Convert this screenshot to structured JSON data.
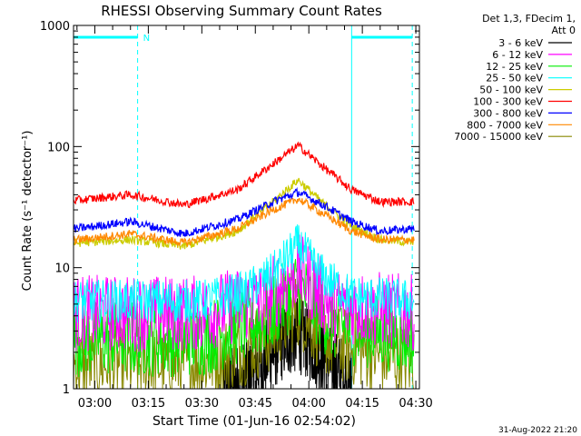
{
  "chart_data": {
    "type": "line",
    "title": "RHESSI Observing Summary Count Rates",
    "xlabel": "Start Time (01-Jun-16 02:54:02)",
    "ylabel": "Count Rate (s⁻¹ detector⁻¹)",
    "yscale": "log",
    "ylim": [
      1,
      1000
    ],
    "xlim": [
      "02:54:02",
      "04:31:00"
    ],
    "x_ticks": [
      "03:00",
      "03:15",
      "03:30",
      "03:45",
      "04:00",
      "04:15",
      "04:30"
    ],
    "y_ticks": [
      "1",
      "10",
      "100",
      "1000"
    ],
    "grid": false,
    "legend_position": "right",
    "legend_header": [
      "Det 1,3, FDecim 1,",
      "Att 0"
    ],
    "annotations": {
      "night_marker_label": "N",
      "footer_date": "31-Aug-2022 21:20"
    },
    "series": [
      {
        "name": "3 - 6 keV",
        "color": "#000000",
        "x": [
          "03:36",
          "03:42",
          "03:48",
          "03:54",
          "03:57",
          "04:00",
          "04:06",
          "04:12"
        ],
        "values": [
          1,
          1.2,
          1.8,
          2.6,
          2.8,
          2.4,
          1.6,
          1.1
        ]
      },
      {
        "name": "6 - 12 keV",
        "color": "#ff00ff",
        "x": [
          "02:55",
          "03:30",
          "03:48",
          "03:57",
          "04:06",
          "04:30"
        ],
        "values": [
          4.2,
          4.2,
          5.5,
          9.5,
          5.0,
          4.2
        ]
      },
      {
        "name": "12 - 25 keV",
        "color": "#00ee00",
        "x": [
          "02:55",
          "03:30",
          "03:48",
          "03:57",
          "04:06",
          "04:30"
        ],
        "values": [
          2.6,
          2.6,
          3.8,
          7.0,
          3.5,
          2.6
        ]
      },
      {
        "name": "25 - 50 keV",
        "color": "#00ffff",
        "x": [
          "02:55",
          "03:30",
          "03:42",
          "03:50",
          "03:57",
          "04:04",
          "04:12",
          "04:30"
        ],
        "values": [
          5.3,
          5.3,
          6.2,
          9.0,
          15.5,
          8.5,
          5.8,
          5.3
        ]
      },
      {
        "name": "50 - 100 keV",
        "color": "#cccc00",
        "x": [
          "02:55",
          "03:10",
          "03:25",
          "03:40",
          "03:50",
          "03:57",
          "04:04",
          "04:12",
          "04:20",
          "04:30"
        ],
        "values": [
          16,
          17,
          15,
          20,
          35,
          53,
          34,
          22,
          17,
          16
        ]
      },
      {
        "name": "100 - 300 keV",
        "color": "#ff0000",
        "x": [
          "02:55",
          "03:10",
          "03:25",
          "03:40",
          "03:50",
          "03:57",
          "04:04",
          "04:12",
          "04:20",
          "04:30"
        ],
        "values": [
          36,
          40,
          33,
          44,
          72,
          102,
          68,
          44,
          35,
          35
        ]
      },
      {
        "name": "300 - 800 keV",
        "color": "#0000ff",
        "x": [
          "02:55",
          "03:10",
          "03:25",
          "03:40",
          "03:50",
          "03:57",
          "04:04",
          "04:12",
          "04:20",
          "04:30"
        ],
        "values": [
          21,
          24,
          19,
          25,
          35,
          42,
          33,
          24,
          20,
          21
        ]
      },
      {
        "name": "800 - 7000 keV",
        "color": "#ff8800",
        "x": [
          "02:55",
          "03:10",
          "03:25",
          "03:40",
          "03:50",
          "03:57",
          "04:04",
          "04:12",
          "04:20",
          "04:30"
        ],
        "values": [
          17,
          19,
          16,
          21,
          30,
          37,
          28,
          20,
          17,
          17
        ]
      },
      {
        "name": "7000 - 15000 keV",
        "color": "#888800",
        "x": [
          "02:55",
          "03:30",
          "03:48",
          "03:57",
          "04:06",
          "04:30"
        ],
        "values": [
          1.6,
          1.6,
          2.6,
          4.5,
          2.4,
          1.6
        ]
      }
    ],
    "markers": [
      {
        "kind": "night",
        "start": "02:54",
        "end": "03:12",
        "color": "#00ffff"
      },
      {
        "kind": "night",
        "start": "04:12",
        "end": "04:29",
        "color": "#00ffff"
      }
    ]
  }
}
